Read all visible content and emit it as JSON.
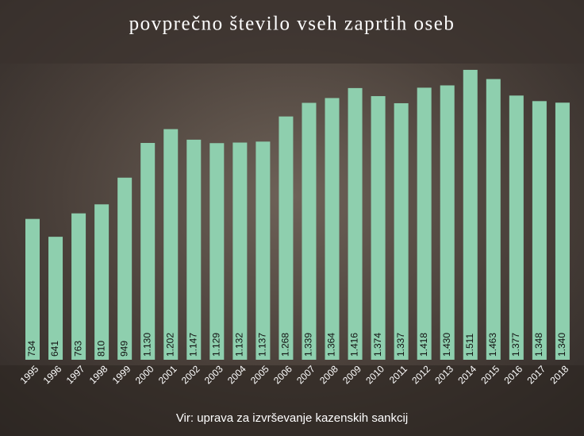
{
  "chart_data": {
    "type": "bar",
    "title": "povprečno število vseh zaprtih oseb",
    "source": "Vir: uprava za izvrševanje kazenskih sankcij",
    "categories": [
      "1995",
      "1996",
      "1997",
      "1998",
      "1999",
      "2000",
      "2001",
      "2002",
      "2003",
      "2004",
      "2005",
      "2006",
      "2007",
      "2008",
      "2009",
      "2010",
      "2011",
      "2012",
      "2013",
      "2014",
      "2015",
      "2016",
      "2017",
      "2018"
    ],
    "values": [
      734,
      641,
      763,
      810,
      949,
      1130,
      1202,
      1147,
      1129,
      1132,
      1137,
      1268,
      1339,
      1364,
      1416,
      1374,
      1337,
      1418,
      1430,
      1511,
      1463,
      1377,
      1348,
      1340
    ],
    "value_labels": [
      "734",
      "641",
      "763",
      "810",
      "949",
      "1.130",
      "1.202",
      "1.147",
      "1.129",
      "1.132",
      "1.137",
      "1.268",
      "1.339",
      "1.364",
      "1.416",
      "1.374",
      "1.337",
      "1.418",
      "1.430",
      "1.511",
      "1.463",
      "1.377",
      "1.348",
      "1.340"
    ],
    "color": "#8ecfae"
  }
}
